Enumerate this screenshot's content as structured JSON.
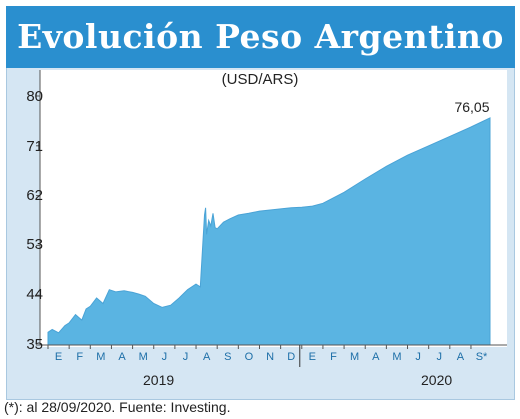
{
  "title": "Evolución Peso Argentino",
  "unit_label": "(USD/ARS)",
  "end_value_label": "76,05",
  "footnote": "(*): al 28/09/2020. Fuente: Investing.",
  "colors": {
    "title_band": "#2a8fcf",
    "frame": "#d5e6f3",
    "area": "#5ab4e2",
    "axis_text": "#1d6fa8"
  },
  "chart_data": {
    "type": "area",
    "ylim": [
      35,
      80
    ],
    "yticks": [
      "80",
      "71",
      "62",
      "53",
      "44",
      "35"
    ],
    "month_labels_2019": [
      "E",
      "F",
      "M",
      "A",
      "M",
      "J",
      "J",
      "A",
      "S",
      "O",
      "N",
      "D"
    ],
    "month_labels_2020": [
      "E",
      "F",
      "M",
      "A",
      "M",
      "J",
      "J",
      "A",
      "S*"
    ],
    "years": [
      "2019",
      "2020"
    ],
    "x": [
      0,
      0.2,
      0.5,
      0.8,
      1.0,
      1.3,
      1.6,
      1.8,
      2.0,
      2.3,
      2.6,
      2.9,
      3.2,
      3.6,
      4.0,
      4.3,
      4.6,
      5.0,
      5.4,
      5.8,
      6.2,
      6.6,
      7.0,
      7.2,
      7.4,
      7.45,
      7.5,
      7.6,
      7.7,
      7.8,
      7.9,
      8.0,
      8.3,
      8.6,
      9.0,
      9.5,
      10.0,
      10.5,
      11.0,
      11.5,
      12.0,
      12.5,
      13.0,
      14.0,
      15.0,
      16.0,
      17.0,
      18.0,
      19.0,
      20.0,
      20.9
    ],
    "values": [
      37.3,
      37.8,
      37.2,
      38.5,
      39.0,
      40.5,
      39.5,
      41.5,
      42.0,
      43.5,
      42.5,
      45.0,
      44.6,
      44.8,
      44.5,
      44.2,
      43.8,
      42.5,
      41.8,
      42.2,
      43.5,
      45.0,
      46.0,
      45.5,
      58.5,
      59.8,
      55.0,
      57.5,
      56.5,
      58.8,
      56.2,
      56.0,
      57.2,
      57.8,
      58.5,
      58.8,
      59.2,
      59.4,
      59.6,
      59.8,
      59.9,
      60.1,
      60.6,
      62.6,
      65.0,
      67.3,
      69.3,
      71.0,
      72.7,
      74.4,
      76.05
    ]
  }
}
